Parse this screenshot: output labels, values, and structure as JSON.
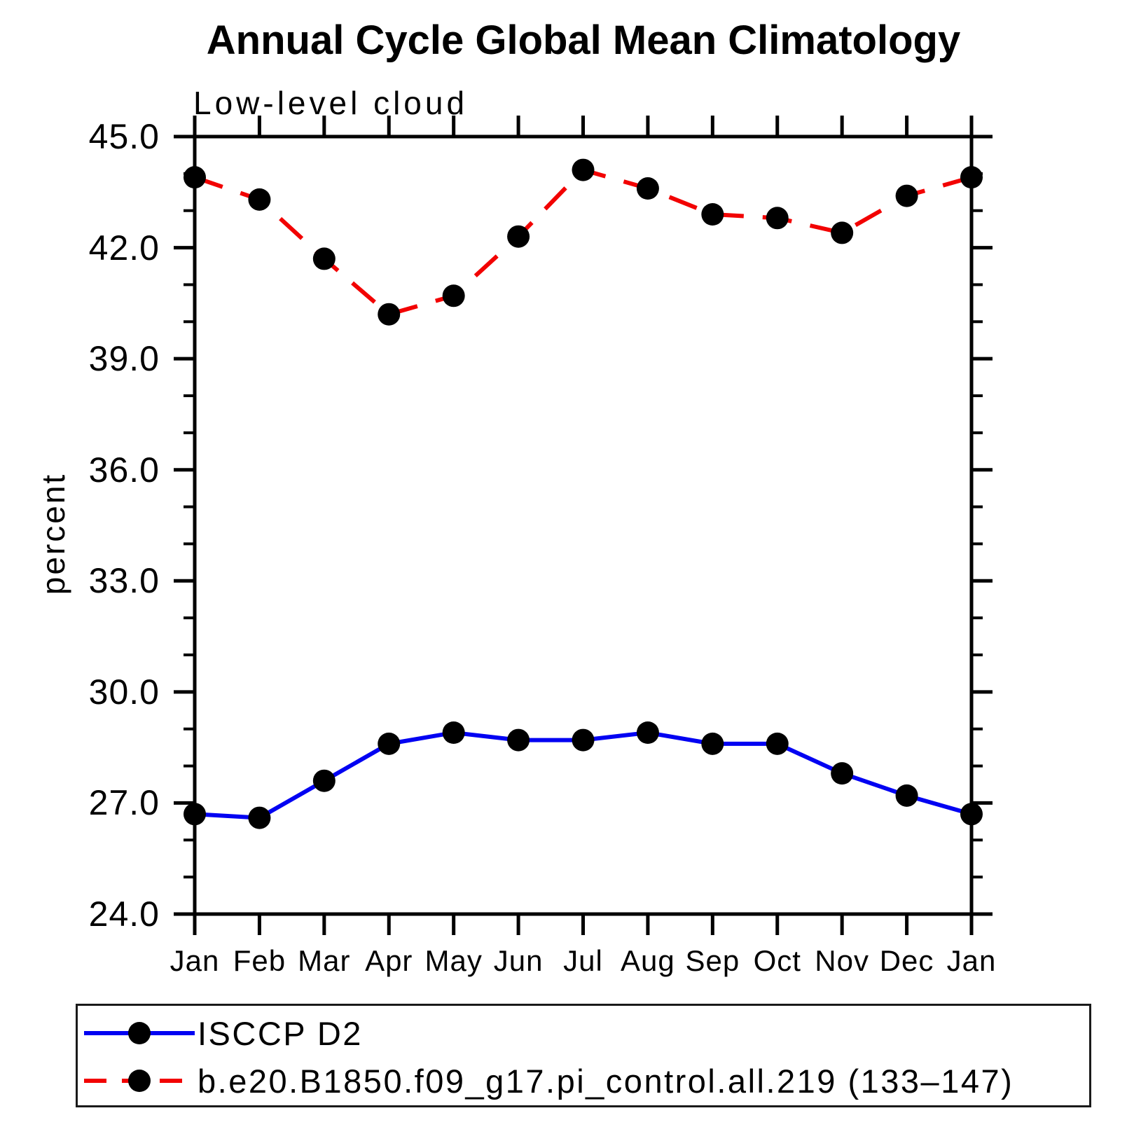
{
  "title": "Annual Cycle Global Mean Climatology",
  "subtitle": "Low-level cloud",
  "y_axis": {
    "label": "percent"
  },
  "legend": {
    "entries": [
      {
        "label": "ISCCP D2",
        "color": "#0202f2",
        "style": "solid"
      },
      {
        "label": "b.e20.B1850.f09_g17.pi_control.all.219 (133–147)",
        "color": "#f20202",
        "style": "dashed"
      }
    ]
  },
  "chart_data": {
    "type": "line",
    "title": "Annual Cycle Global Mean Climatology",
    "subtitle": "Low-level cloud",
    "xlabel": "",
    "ylabel": "percent",
    "categories": [
      "Jan",
      "Feb",
      "Mar",
      "Apr",
      "May",
      "Jun",
      "Jul",
      "Aug",
      "Sep",
      "Oct",
      "Nov",
      "Dec",
      "Jan"
    ],
    "ylim": [
      24.0,
      45.0
    ],
    "ytick_major_values": [
      24,
      27,
      30,
      33,
      36,
      39,
      42,
      45
    ],
    "ytick_labels": [
      "24.0",
      "27.0",
      "30.0",
      "33.0",
      "36.0",
      "39.0",
      "42.0",
      "45.0"
    ],
    "ytick_minor_interval": 1.0,
    "grid": "off",
    "legend_position": "bottom",
    "marker_color": "#000000",
    "axis_color": "#000000",
    "series": [
      {
        "name": "ISCCP D2",
        "color": "#0202f2",
        "line_style": "solid",
        "marker": "filled-circle",
        "values": [
          26.7,
          26.6,
          27.6,
          28.6,
          28.9,
          28.7,
          28.7,
          28.9,
          28.6,
          28.6,
          27.8,
          27.2,
          26.7
        ]
      },
      {
        "name": "b.e20.B1850.f09_g17.pi_control.all.219 (133–147)",
        "color": "#f20202",
        "line_style": "dashed",
        "marker": "filled-circle",
        "values": [
          43.9,
          43.3,
          41.7,
          40.2,
          40.7,
          42.3,
          44.1,
          43.6,
          42.9,
          42.8,
          42.4,
          43.4,
          43.9
        ]
      }
    ]
  }
}
